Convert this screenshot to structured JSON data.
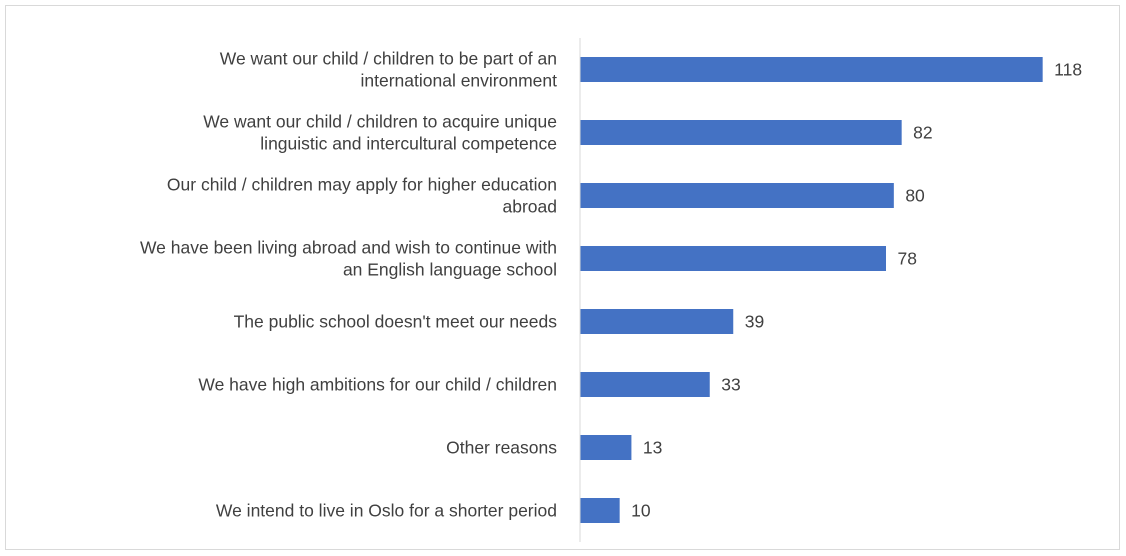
{
  "chart_data": {
    "type": "bar",
    "orientation": "horizontal",
    "categories": [
      [
        "We want our child / children to be part of an",
        "international environment"
      ],
      [
        "We want our child / children to acquire unique",
        "linguistic and intercultural competence"
      ],
      [
        "Our child / children may apply for higher education",
        "abroad"
      ],
      [
        "We have been living abroad and wish to continue with",
        "an English language school"
      ],
      [
        "The public school doesn't meet our needs"
      ],
      [
        "We have high ambitions for our child / children"
      ],
      [
        "Other reasons"
      ],
      [
        "We intend to live in Oslo for a shorter period"
      ]
    ],
    "values": [
      118,
      82,
      80,
      78,
      39,
      33,
      13,
      10
    ],
    "value_labels": [
      "118",
      "82",
      "80",
      "78",
      "39",
      "33",
      "13",
      "10"
    ],
    "bar_color": "#4472c4",
    "axis_color": "#d9d9d9",
    "text_color": "#404040",
    "xlim": [
      0,
      120
    ],
    "grid": false,
    "legend": "none",
    "title": "",
    "xlabel": "",
    "ylabel": ""
  }
}
